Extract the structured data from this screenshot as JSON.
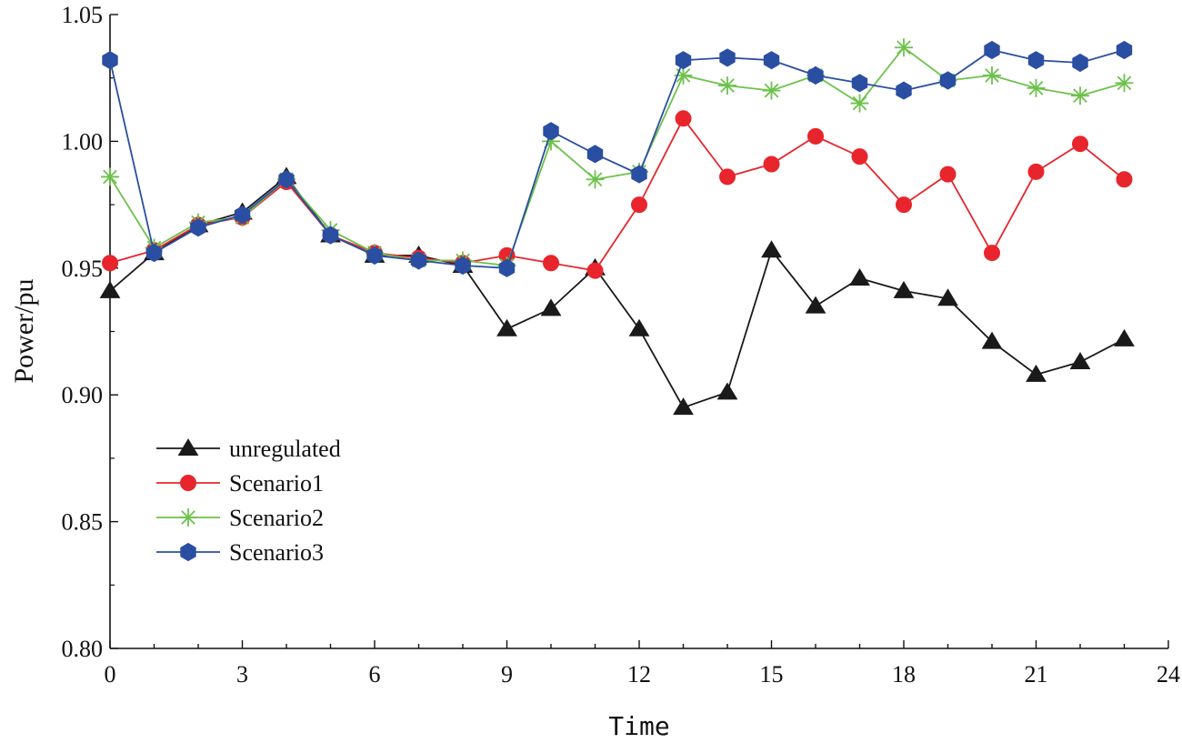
{
  "chart_data": {
    "type": "line",
    "title": "",
    "xlabel": "Time",
    "ylabel": "Power/pu",
    "xlim": [
      0,
      24
    ],
    "ylim": [
      0.8,
      1.05
    ],
    "xticks": [
      0,
      3,
      6,
      9,
      12,
      15,
      18,
      21,
      24
    ],
    "xtick_labels": [
      "0",
      "3",
      "6",
      "9",
      "12",
      "15",
      "18",
      "21",
      "24"
    ],
    "yticks": [
      0.8,
      0.85,
      0.9,
      0.95,
      1.0,
      1.05
    ],
    "ytick_labels": [
      "0.80",
      "0.85",
      "0.90",
      "0.95",
      "1.00",
      "1.05"
    ],
    "grid": false,
    "legend_position": "middle-left",
    "x": [
      0,
      1,
      2,
      3,
      4,
      5,
      6,
      7,
      8,
      9,
      10,
      11,
      12,
      13,
      14,
      15,
      16,
      17,
      18,
      19,
      20,
      21,
      22,
      23
    ],
    "series": [
      {
        "name": "unregulated",
        "color": "#1a1a1a",
        "marker": "triangle",
        "values": [
          0.941,
          0.956,
          0.967,
          0.972,
          0.986,
          0.963,
          0.955,
          0.955,
          0.951,
          0.926,
          0.934,
          0.95,
          0.926,
          0.895,
          0.901,
          0.957,
          0.935,
          0.946,
          0.941,
          0.938,
          0.921,
          0.908,
          0.913,
          0.922
        ]
      },
      {
        "name": "Scenario1",
        "color": "#e8252c",
        "marker": "circle",
        "values": [
          0.952,
          0.957,
          0.967,
          0.97,
          0.984,
          0.963,
          0.956,
          0.954,
          0.952,
          0.955,
          0.952,
          0.949,
          0.975,
          1.009,
          0.986,
          0.991,
          1.002,
          0.994,
          0.975,
          0.987,
          0.956,
          0.988,
          0.999,
          0.985
        ]
      },
      {
        "name": "Scenario2",
        "color": "#6cc24a",
        "marker": "asterisk",
        "values": [
          0.986,
          0.958,
          0.968,
          0.97,
          0.985,
          0.965,
          0.956,
          0.953,
          0.953,
          0.951,
          1.0,
          0.985,
          0.988,
          1.026,
          1.022,
          1.02,
          1.026,
          1.015,
          1.037,
          1.024,
          1.026,
          1.021,
          1.018,
          1.023
        ]
      },
      {
        "name": "Scenario3",
        "color": "#2a4ea2",
        "marker": "hexagon",
        "values": [
          1.032,
          0.956,
          0.966,
          0.971,
          0.985,
          0.963,
          0.955,
          0.953,
          0.951,
          0.95,
          1.004,
          0.995,
          0.987,
          1.032,
          1.033,
          1.032,
          1.026,
          1.023,
          1.02,
          1.024,
          1.036,
          1.032,
          1.031,
          1.036
        ]
      }
    ]
  }
}
